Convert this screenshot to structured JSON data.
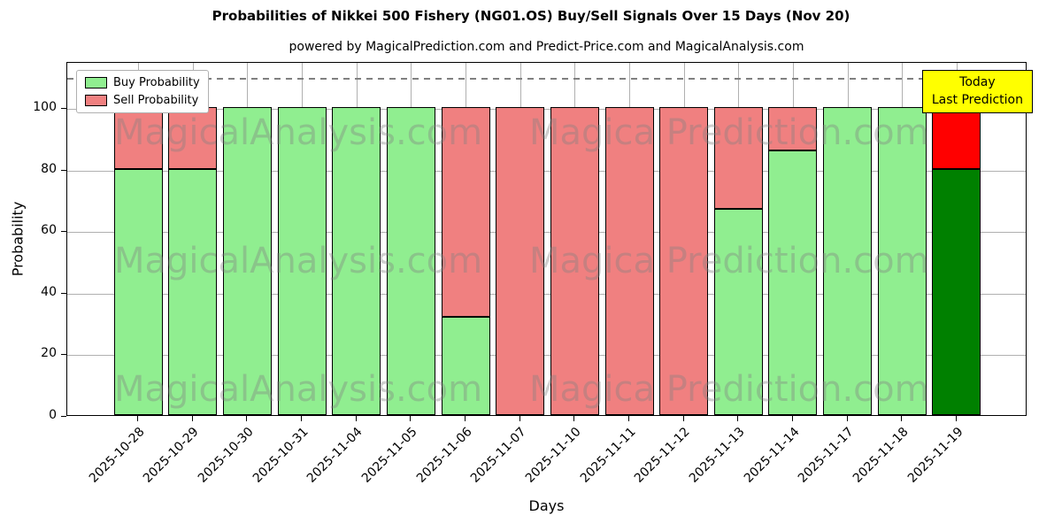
{
  "chart": {
    "title": "Probabilities of Nikkei 500 Fishery (NG01.OS) Buy/Sell Signals Over 15 Days (Nov 20)",
    "subtitle": "powered by MagicalPrediction.com and Predict-Price.com and MagicalAnalysis.com",
    "xlabel": "Days",
    "ylabel": "Probability",
    "legend": {
      "buy_label": "Buy Probability",
      "sell_label": "Sell Probability"
    },
    "today_box": {
      "line1": "Today",
      "line2": "Last Prediction",
      "bg_color": "#ffff00"
    }
  },
  "chart_data": {
    "type": "bar",
    "stacked": true,
    "title": "Probabilities of Nikkei 500 Fishery (NG01.OS) Buy/Sell Signals Over 15 Days (Nov 20)",
    "xlabel": "Days",
    "ylabel": "Probability",
    "ylim": [
      0,
      115
    ],
    "yticks": [
      0,
      20,
      40,
      60,
      80,
      100
    ],
    "dashed_line_y": 110,
    "grid": true,
    "legend_position": "upper left",
    "categories": [
      "2025-10-28",
      "2025-10-29",
      "2025-10-30",
      "2025-10-31",
      "2025-11-04",
      "2025-11-05",
      "2025-11-06",
      "2025-11-07",
      "2025-11-10",
      "2025-11-11",
      "2025-11-12",
      "2025-11-13",
      "2025-11-14",
      "2025-11-17",
      "2025-11-18",
      "2025-11-19"
    ],
    "series": [
      {
        "name": "Buy Probability",
        "color": "#90ee90",
        "values": [
          80,
          80,
          100,
          100,
          100,
          100,
          32,
          0,
          0,
          0,
          0,
          67,
          86,
          100,
          100,
          80
        ]
      },
      {
        "name": "Sell Probability",
        "color": "#f08080",
        "values": [
          20,
          20,
          0,
          0,
          0,
          0,
          68,
          100,
          100,
          100,
          100,
          33,
          14,
          0,
          0,
          20
        ]
      }
    ],
    "today_index": 15,
    "today_colors": {
      "buy": "#008000",
      "sell": "#ff0000"
    },
    "watermarks": [
      {
        "text": "MagicalAnalysis.com",
        "col": 0,
        "row": 0
      },
      {
        "text": "Magica Prediction.com",
        "col": 1,
        "row": 0
      },
      {
        "text": "MagicalAnalysis.com",
        "col": 0,
        "row": 1
      },
      {
        "text": "Magica Prediction.com",
        "col": 1,
        "row": 1
      },
      {
        "text": "MagicalAnalysis.com",
        "col": 0,
        "row": 2
      },
      {
        "text": "Magica Prediction.com",
        "col": 1,
        "row": 2
      }
    ]
  }
}
